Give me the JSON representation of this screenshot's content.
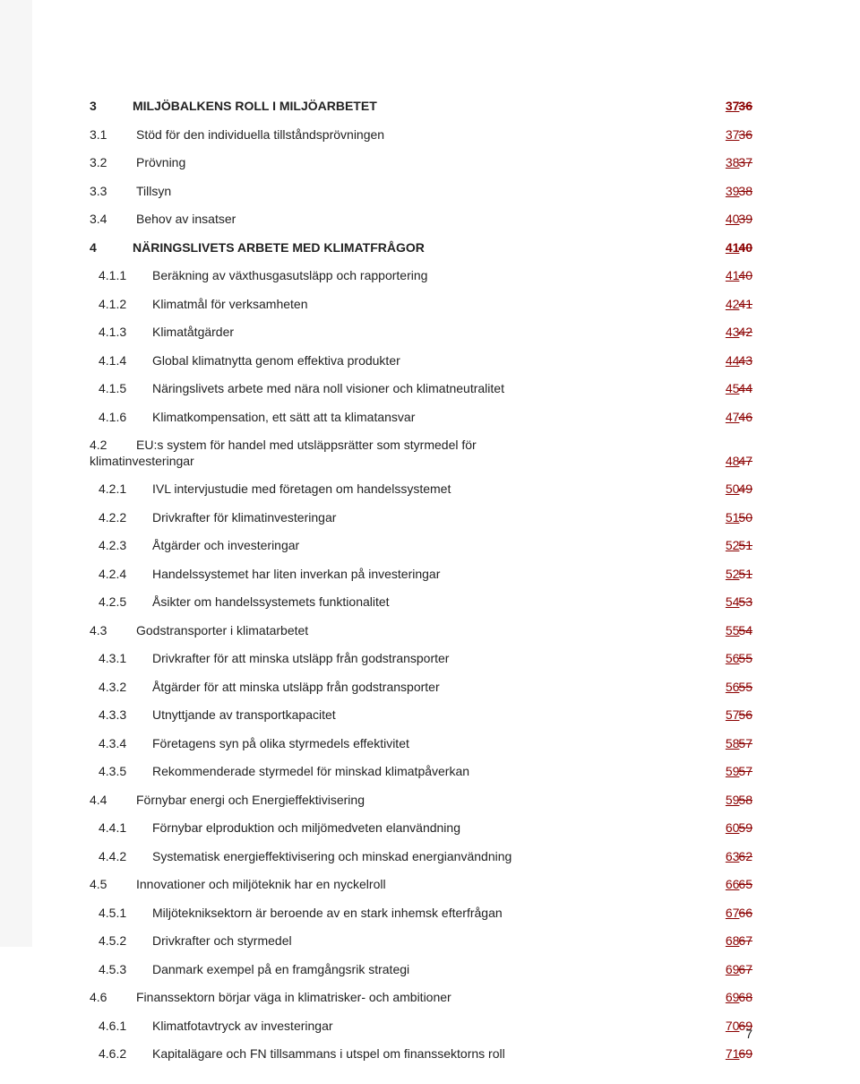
{
  "colors": {
    "text": "#222222",
    "tracked_change": "#8b0000",
    "sidebar_strip": "#f6f6f6",
    "background": "#ffffff"
  },
  "page_number": "7",
  "toc_entries": [
    {
      "num": "3",
      "title": "MILJÖBALKENS ROLL I MILJÖARBETET",
      "level": 0,
      "page_new": "37",
      "page_old": "36"
    },
    {
      "num": "3.1",
      "title": "Stöd för den individuella tillståndsprövningen",
      "level": 1,
      "page_new": "37",
      "page_old": "36"
    },
    {
      "num": "3.2",
      "title": "Prövning",
      "level": 1,
      "page_new": "38",
      "page_old": "37"
    },
    {
      "num": "3.3",
      "title": "Tillsyn",
      "level": 1,
      "page_new": "39",
      "page_old": "38"
    },
    {
      "num": "3.4",
      "title": "Behov av insatser",
      "level": 1,
      "page_new": "40",
      "page_old": "39"
    },
    {
      "num": "4",
      "title": "NÄRINGSLIVETS ARBETE MED KLIMATFRÅGOR",
      "level": 0,
      "page_new": "41",
      "page_old": "40"
    },
    {
      "num": "4.1.1",
      "title": "Beräkning av växthusgasutsläpp och rapportering",
      "level": 2,
      "page_new": "41",
      "page_old": "40"
    },
    {
      "num": "4.1.2",
      "title": "Klimatmål för verksamheten",
      "level": 2,
      "page_new": "42",
      "page_old": "41"
    },
    {
      "num": "4.1.3",
      "title": "Klimatåtgärder",
      "level": 2,
      "page_new": "43",
      "page_old": "42"
    },
    {
      "num": "4.1.4",
      "title": "Global klimatnytta genom effektiva produkter",
      "level": 2,
      "page_new": "44",
      "page_old": "43"
    },
    {
      "num": "4.1.5",
      "title": "Näringslivets arbete med nära noll visioner och klimatneutralitet",
      "level": 2,
      "page_new": "45",
      "page_old": "44"
    },
    {
      "num": "4.1.6",
      "title": "Klimatkompensation, ett sätt att ta klimatansvar",
      "level": 2,
      "page_new": "47",
      "page_old": "46"
    },
    {
      "num": "4.2",
      "title_line1": "EU:s system för handel med utsläppsrätter som styrmedel för",
      "title_line2": "klimatinvesteringar",
      "level": 1,
      "page_new": "48",
      "page_old": "47",
      "wrap": true
    },
    {
      "num": "4.2.1",
      "title": "IVL intervjustudie med företagen om handelssystemet",
      "level": 2,
      "page_new": "50",
      "page_old": "49"
    },
    {
      "num": "4.2.2",
      "title": "Drivkrafter för klimatinvesteringar",
      "level": 2,
      "page_new": "51",
      "page_old": "50"
    },
    {
      "num": "4.2.3",
      "title": "Åtgärder och investeringar",
      "level": 2,
      "page_new": "52",
      "page_old": "51"
    },
    {
      "num": "4.2.4",
      "title": "Handelssystemet har liten inverkan på investeringar",
      "level": 2,
      "page_new": "52",
      "page_old": "51"
    },
    {
      "num": "4.2.5",
      "title": "Åsikter om handelssystemets funktionalitet",
      "level": 2,
      "page_new": "54",
      "page_old": "53"
    },
    {
      "num": "4.3",
      "title": "Godstransporter i klimatarbetet",
      "level": 1,
      "page_new": "55",
      "page_old": "54"
    },
    {
      "num": "4.3.1",
      "title": "Drivkrafter för att minska utsläpp från godstransporter",
      "level": 2,
      "page_new": "56",
      "page_old": "55"
    },
    {
      "num": "4.3.2",
      "title": "Åtgärder för att minska utsläpp från godstransporter",
      "level": 2,
      "page_new": "56",
      "page_old": "55"
    },
    {
      "num": "4.3.3",
      "title": "Utnyttjande av transportkapacitet",
      "level": 2,
      "page_new": "57",
      "page_old": "56"
    },
    {
      "num": "4.3.4",
      "title": "Företagens syn på olika styrmedels effektivitet",
      "level": 2,
      "page_new": "58",
      "page_old": "57"
    },
    {
      "num": "4.3.5",
      "title": "Rekommenderade styrmedel för minskad klimatpåverkan",
      "level": 2,
      "page_new": "59",
      "page_old": "57"
    },
    {
      "num": "4.4",
      "title": "Förnybar energi och Energieffektivisering",
      "level": 1,
      "page_new": "59",
      "page_old": "58"
    },
    {
      "num": "4.4.1",
      "title": "Förnybar elproduktion och miljömedveten elanvändning",
      "level": 2,
      "page_new": "60",
      "page_old": "59"
    },
    {
      "num": "4.4.2",
      "title": "Systematisk energieffektivisering och minskad energianvändning",
      "level": 2,
      "page_new": "63",
      "page_old": "62"
    },
    {
      "num": "4.5",
      "title": "Innovationer och miljöteknik har en nyckelroll",
      "level": 1,
      "page_new": "66",
      "page_old": "65"
    },
    {
      "num": "4.5.1",
      "title": "Miljötekniksektorn är beroende av en stark inhemsk efterfrågan",
      "level": 2,
      "page_new": "67",
      "page_old": "66"
    },
    {
      "num": "4.5.2",
      "title": "Drivkrafter och styrmedel",
      "level": 2,
      "page_new": "68",
      "page_old": "67"
    },
    {
      "num": "4.5.3",
      "title": "Danmark exempel på en framgångsrik strategi",
      "level": 2,
      "page_new": "69",
      "page_old": "67"
    },
    {
      "num": "4.6",
      "title": "Finanssektorn börjar väga in klimatrisker- och ambitioner",
      "level": 1,
      "page_new": "69",
      "page_old": "68"
    },
    {
      "num": "4.6.1",
      "title": "Klimatfotavtryck av investeringar",
      "level": 2,
      "page_new": "70",
      "page_old": "69"
    },
    {
      "num": "4.6.2",
      "title": "Kapitalägare och FN tillsammans i utspel om finanssektorns roll",
      "level": 2,
      "page_new": "71",
      "page_old": "69"
    }
  ]
}
